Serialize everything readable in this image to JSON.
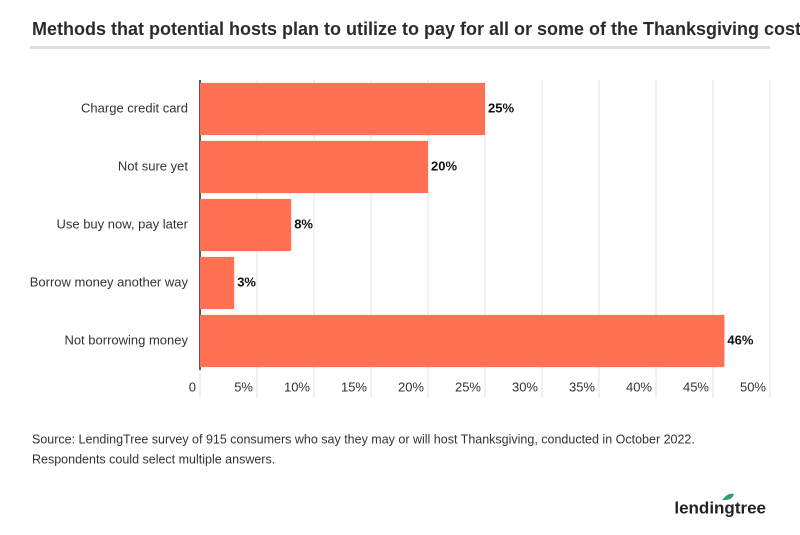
{
  "chart_data": {
    "type": "bar",
    "orientation": "horizontal",
    "title": "Methods that potential hosts plan to utilize to pay for all or some of the Thanksgiving costs",
    "categories": [
      "Charge credit card",
      "Not sure yet",
      "Use buy now, pay later",
      "Borrow money another way",
      "Not borrowing money"
    ],
    "values": [
      25,
      20,
      8,
      3,
      46
    ],
    "value_labels": [
      "25%",
      "20%",
      "8%",
      "3%",
      "46%"
    ],
    "color": "#ff7152",
    "xlim": [
      0,
      50
    ],
    "xticks": [
      0,
      {
        "value": 5,
        "label": "5%"
      },
      {
        "value": 10,
        "label": "10%"
      },
      {
        "value": 15,
        "label": "15%"
      },
      {
        "value": 20,
        "label": "20%"
      },
      {
        "value": 25,
        "label": "25%"
      },
      {
        "value": 30,
        "label": "30%"
      },
      {
        "value": 35,
        "label": "35%"
      },
      {
        "value": 40,
        "label": "40%"
      },
      {
        "value": 45,
        "label": "45%"
      },
      {
        "value": 50,
        "label": "50%"
      }
    ],
    "grid": true,
    "source": "Source: LendingTree survey of 915 consumers who say they may or will host Thanksgiving, conducted in October 2022.",
    "note": "Respondents could select multiple answers.",
    "logo": "lendingtree"
  }
}
